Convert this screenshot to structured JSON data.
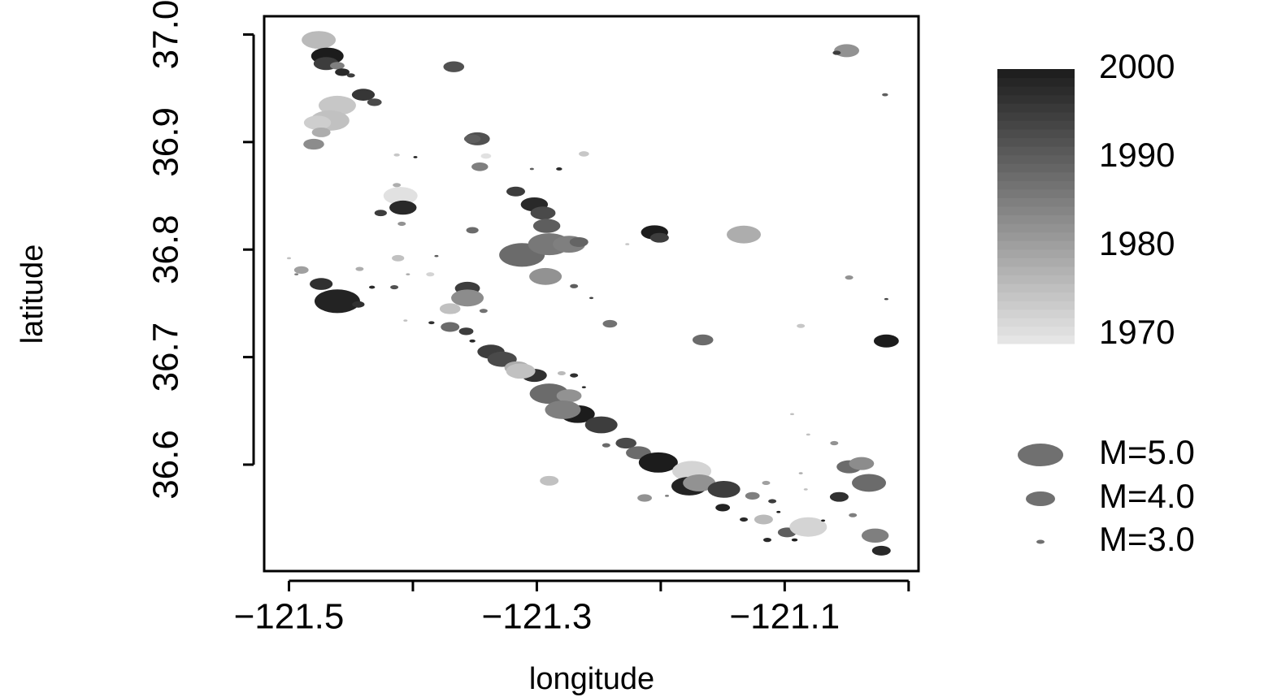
{
  "chart_data": {
    "type": "scatter",
    "x_label": "longitude",
    "y_label": "latitude",
    "xlim": [
      -121.52,
      -120.992
    ],
    "ylim": [
      36.501,
      37.017
    ],
    "xticks": [
      {
        "value": -121.5,
        "label": "−121.5"
      },
      {
        "value": -121.4,
        "label": null
      },
      {
        "value": -121.3,
        "label": "−121.3"
      },
      {
        "value": -121.2,
        "label": null
      },
      {
        "value": -121.1,
        "label": "−121.1"
      },
      {
        "value": -121.0,
        "label": null
      }
    ],
    "yticks": [
      {
        "value": 36.6,
        "label": "36.6"
      },
      {
        "value": 36.7,
        "label": "36.7"
      },
      {
        "value": 36.8,
        "label": "36.8"
      },
      {
        "value": 36.9,
        "label": "36.9"
      },
      {
        "value": 37.0,
        "label": "37.0"
      }
    ],
    "x": [
      -121.476,
      -121.469,
      -121.47,
      -121.461,
      -121.457,
      -121.45,
      -121.44,
      -121.431,
      -121.461,
      -121.467,
      -121.477,
      -121.474,
      -121.48,
      -121.367,
      -121.05,
      -121.058,
      -121.019,
      -121.348,
      -121.352,
      -121.341,
      -121.346,
      -121.398,
      -121.413,
      -121.304,
      -121.282,
      -121.262,
      -121.413,
      -121.41,
      -121.408,
      -121.426,
      -121.409,
      -121.317,
      -121.302,
      -121.295,
      -121.292,
      -121.205,
      -121.201,
      -121.133,
      -121.352,
      -121.312,
      -121.29,
      -121.274,
      -121.266,
      -121.227,
      -121.293,
      -121.27,
      -121.256,
      -121.356,
      -121.356,
      -121.343,
      -121.37,
      -121.5,
      -121.49,
      -121.494,
      -121.474,
      -121.461,
      -121.444,
      -121.433,
      -121.415,
      -121.443,
      -121.412,
      -121.381,
      -121.404,
      -121.386,
      -121.406,
      -121.385,
      -121.37,
      -121.357,
      -121.352,
      -121.337,
      -121.328,
      -121.316,
      -121.302,
      -121.28,
      -121.27,
      -121.29,
      -121.274,
      -121.262,
      -121.267,
      -121.279,
      -121.248,
      -121.244,
      -121.228,
      -121.218,
      -121.202,
      -121.175,
      -121.177,
      -121.169,
      -121.149,
      -121.15,
      -121.133,
      -121.126,
      -121.115,
      -121.11,
      -121.117,
      -121.105,
      -121.098,
      -121.114,
      -121.092,
      -121.081,
      -121.069,
      -121.056,
      -121.048,
      -121.038,
      -121.032,
      -121.06,
      -121.081,
      -121.094,
      -121.087,
      -121.045,
      -121.027,
      -121.022,
      -121.018,
      -121.018,
      -121.048,
      -121.166,
      -121.241,
      -121.087,
      -121.29,
      -121.213,
      -121.195,
      -121.083,
      -121.313
    ],
    "y": [
      36.995,
      36.98,
      36.973,
      36.971,
      36.965,
      36.962,
      36.944,
      36.937,
      36.934,
      36.92,
      36.918,
      36.909,
      36.898,
      36.97,
      36.985,
      36.983,
      36.944,
      36.903,
      36.903,
      36.887,
      36.877,
      36.886,
      36.888,
      36.875,
      36.875,
      36.889,
      36.86,
      36.85,
      36.839,
      36.834,
      36.824,
      36.854,
      36.842,
      36.834,
      36.822,
      36.816,
      36.811,
      36.814,
      36.818,
      36.795,
      36.805,
      36.805,
      36.807,
      36.805,
      36.775,
      36.766,
      36.755,
      36.764,
      36.755,
      36.743,
      36.745,
      36.792,
      36.781,
      36.777,
      36.768,
      36.752,
      36.749,
      36.765,
      36.765,
      36.782,
      36.792,
      36.794,
      36.777,
      36.777,
      36.734,
      36.732,
      36.728,
      36.724,
      36.715,
      36.705,
      36.698,
      36.69,
      36.683,
      36.685,
      36.683,
      36.666,
      36.664,
      36.672,
      36.647,
      36.651,
      36.637,
      36.618,
      36.62,
      36.611,
      36.602,
      36.594,
      36.58,
      36.583,
      36.577,
      36.56,
      36.549,
      36.571,
      36.583,
      36.566,
      36.549,
      36.556,
      36.537,
      36.53,
      36.53,
      36.542,
      36.548,
      36.57,
      36.598,
      36.601,
      36.583,
      36.62,
      36.628,
      36.647,
      36.592,
      36.553,
      36.534,
      36.52,
      36.715,
      36.754,
      36.774,
      36.716,
      36.731,
      36.729,
      36.585,
      36.569,
      36.571,
      36.577,
      36.687
    ],
    "year": [
      1976,
      2000,
      1995,
      1985,
      1998,
      1995,
      1996,
      1993,
      1974,
      1975,
      1973,
      1978,
      1983,
      1992,
      1982,
      1995,
      1990,
      1992,
      1990,
      1970,
      1985,
      2000,
      1974,
      1990,
      1998,
      1974,
      1978,
      1970,
      1998,
      1995,
      1982,
      1995,
      1998,
      1993,
      1990,
      2000,
      1995,
      1978,
      1988,
      1988,
      1986,
      1985,
      1989,
      1974,
      1982,
      1990,
      1994,
      1995,
      1983,
      1987,
      1975,
      1975,
      1980,
      1985,
      1997,
      1999,
      1997,
      1998,
      1992,
      1978,
      1975,
      1990,
      1978,
      1972,
      1975,
      1997,
      1988,
      1995,
      1998,
      1995,
      1993,
      1978,
      1997,
      1976,
      1997,
      1988,
      1982,
      1998,
      2000,
      1985,
      1995,
      1988,
      1993,
      1988,
      2000,
      1972,
      1999,
      1982,
      1995,
      1999,
      1998,
      1985,
      1980,
      1995,
      1976,
      2000,
      1990,
      1998,
      2000,
      1972,
      2000,
      1997,
      1988,
      1983,
      1988,
      1982,
      1975,
      1975,
      1978,
      1985,
      1985,
      1998,
      2000,
      1993,
      1982,
      1988,
      1987,
      1974,
      1975,
      1982,
      1985,
      1975,
      1975
    ],
    "magnitude": [
      4.3,
      4.2,
      3.8,
      3.3,
      3.3,
      3.0,
      3.7,
      3.3,
      4.5,
      4.6,
      3.9,
      3.5,
      3.6,
      3.6,
      3.8,
      3.0,
      2.9,
      3.8,
      3.4,
      3.1,
      3.4,
      2.8,
      2.9,
      2.8,
      2.9,
      3.1,
      3.0,
      4.3,
      3.9,
      3.2,
      3.0,
      3.5,
      3.9,
      3.8,
      3.9,
      3.9,
      3.5,
      4.3,
      3.2,
      5.0,
      4.8,
      4.2,
      3.5,
      2.8,
      4.2,
      3.0,
      2.8,
      3.8,
      4.2,
      3.0,
      3.6,
      2.8,
      3.3,
      2.8,
      3.7,
      5.0,
      3.2,
      2.9,
      3.0,
      3.0,
      3.2,
      2.7,
      2.8,
      3.0,
      2.8,
      2.9,
      3.5,
      3.3,
      2.9,
      3.9,
      4.0,
      3.8,
      3.8,
      3.0,
      3.0,
      4.6,
      3.8,
      2.8,
      4.3,
      4.4,
      4.2,
      3.0,
      3.6,
      3.8,
      4.6,
      4.6,
      4.4,
      4.2,
      4.2,
      3.3,
      3.0,
      3.3,
      3.0,
      3.0,
      3.5,
      2.7,
      3.5,
      3.0,
      2.9,
      4.5,
      2.7,
      3.5,
      3.8,
      3.8,
      4.3,
      3.0,
      2.7,
      2.7,
      2.7,
      3.0,
      3.9,
      3.5,
      3.8,
      2.8,
      3.0,
      3.6,
      3.3,
      3.0,
      3.5,
      3.3,
      2.8,
      2.8,
      4.0
    ],
    "colorbar": {
      "lim": [
        1969,
        2000
      ],
      "ticks": [
        1970,
        1980,
        1990,
        2000
      ],
      "colors": [
        "#e8e8e8",
        "#1c1c1c"
      ]
    },
    "size_legend": {
      "labels": [
        "M=5.0",
        "M=4.0",
        "M=3.0"
      ],
      "values": [
        5,
        4,
        3
      ],
      "color": "#707070"
    }
  }
}
